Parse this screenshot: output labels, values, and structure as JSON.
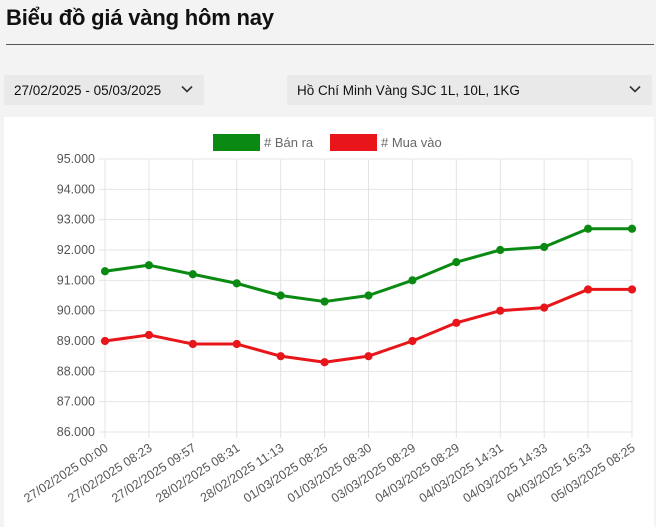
{
  "page": {
    "title": "Biểu đồ giá vàng hôm nay"
  },
  "filters": {
    "date_range": "27/02/2025 - 05/03/2025",
    "gold_type": "Hồ Chí Minh Vàng SJC 1L, 10L, 1KG"
  },
  "icons": {
    "dropdown": "chevron-down-icon"
  },
  "chart_data": {
    "type": "line",
    "title": "",
    "xlabel": "",
    "ylabel": "",
    "ylim": [
      86000,
      95000
    ],
    "y_ticks": [
      "86.000",
      "87.000",
      "88.000",
      "89.000",
      "90.000",
      "91.000",
      "92.000",
      "93.000",
      "94.000",
      "95.000"
    ],
    "y_tick_values": [
      86000,
      87000,
      88000,
      89000,
      90000,
      91000,
      92000,
      93000,
      94000,
      95000
    ],
    "grid": true,
    "legend_position": "top-center",
    "categories": [
      "27/02/2025 00:00",
      "27/02/2025 08:23",
      "27/02/2025 09:57",
      "28/02/2025 08:31",
      "28/02/2025 11:13",
      "01/03/2025 08:25",
      "01/03/2025 08:30",
      "03/03/2025 08:29",
      "04/03/2025 08:29",
      "04/03/2025 14:31",
      "04/03/2025 14:33",
      "04/03/2025 16:33",
      "05/03/2025 08:25"
    ],
    "series": [
      {
        "name": "# Bán ra",
        "color": "#0a8a12",
        "values": [
          91300,
          91500,
          91200,
          90900,
          90500,
          90300,
          90500,
          91000,
          91600,
          92000,
          92100,
          92700,
          92700
        ]
      },
      {
        "name": "# Mua vào",
        "color": "#e8161a",
        "values": [
          89000,
          89200,
          88900,
          88900,
          88500,
          88300,
          88500,
          89000,
          89600,
          90000,
          90100,
          90700,
          90700
        ]
      }
    ]
  }
}
